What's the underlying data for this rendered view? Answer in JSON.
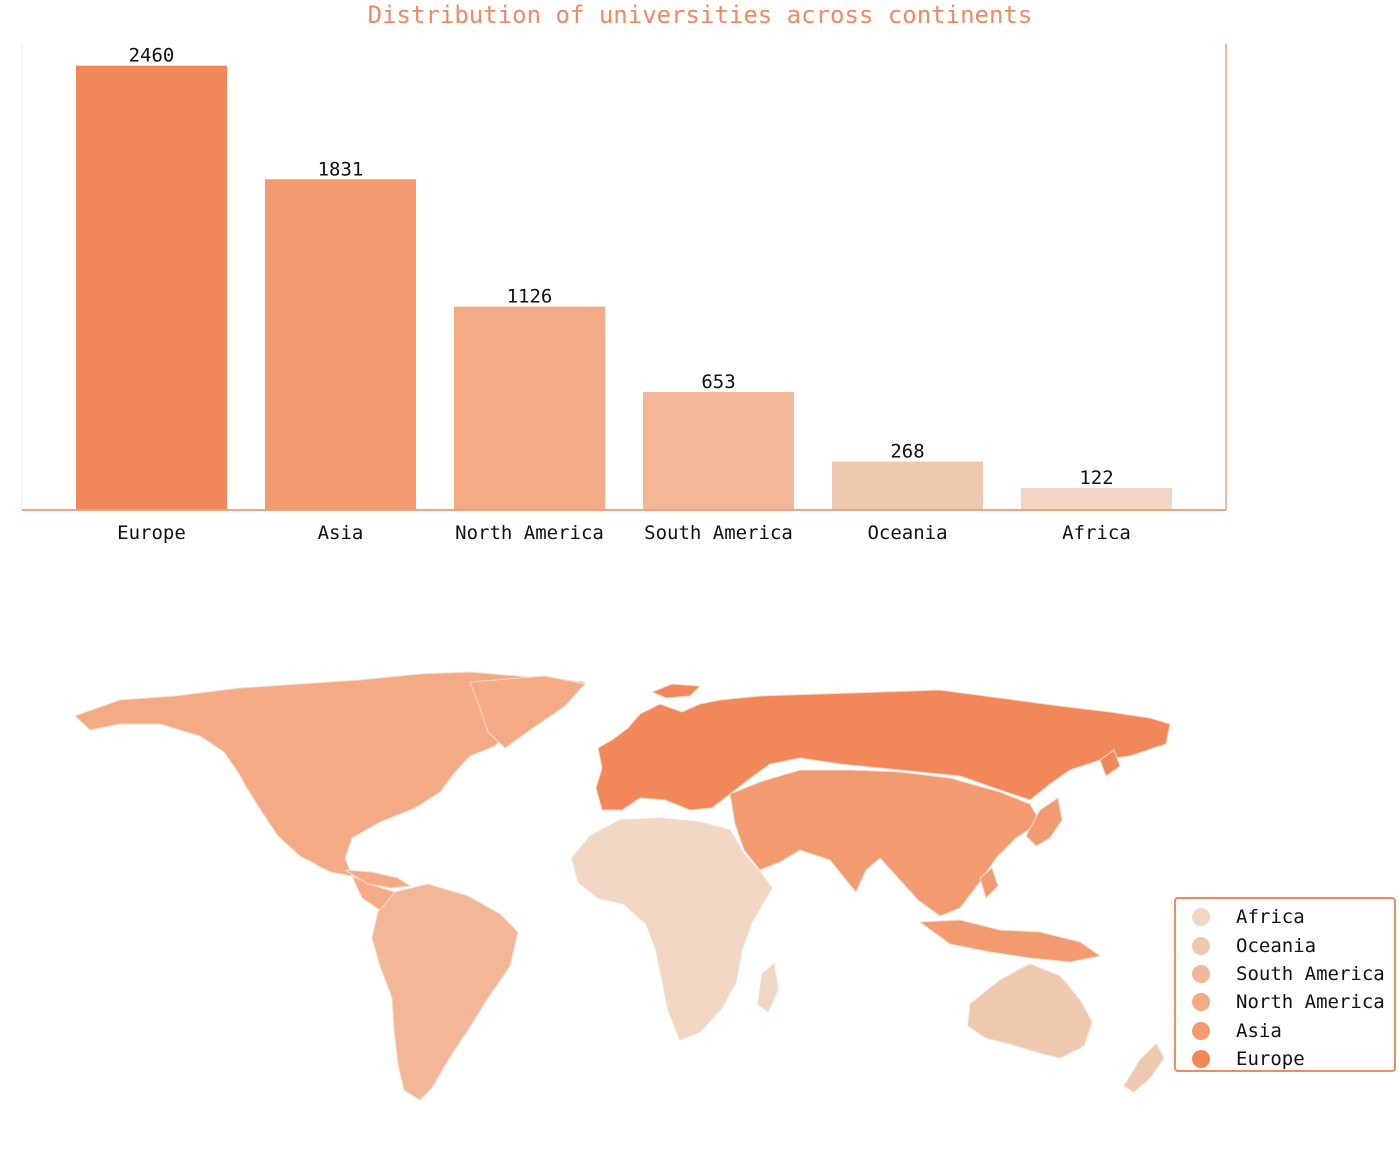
{
  "colors": {
    "title": "#ef8a62",
    "axis": "#e8a58a",
    "border": "#f4c7b4",
    "map_ocean": "#ffffff",
    "continent_colors": {
      "Europe": "#f2885a",
      "Asia": "#f29a70",
      "North America": "#f4aa85",
      "South America": "#f3b797",
      "Oceania": "#efc8b0",
      "Africa": "#f2d6c4"
    }
  },
  "chart_data": [
    {
      "type": "bar",
      "title": "Distribution of universities across continents",
      "xlabel": "",
      "ylabel": "",
      "categories": [
        "Europe",
        "Asia",
        "North America",
        "South America",
        "Oceania",
        "Africa"
      ],
      "values": [
        2460,
        1831,
        1126,
        653,
        268,
        122
      ],
      "value_labels": [
        "2460",
        "1831",
        "1126",
        "653",
        "268",
        "122"
      ],
      "ylim": [
        0,
        2580
      ],
      "grid": false,
      "legend": "none"
    },
    {
      "type": "choropleth-map",
      "regions": [
        "Europe",
        "Asia",
        "North America",
        "South America",
        "Oceania",
        "Africa"
      ],
      "values": [
        2460,
        1831,
        1126,
        653,
        268,
        122
      ],
      "legend_placement": "bottom-right",
      "legend": [
        {
          "name": "Africa",
          "icon": "circle"
        },
        {
          "name": "Oceania",
          "icon": "circle"
        },
        {
          "name": "South America",
          "icon": "circle"
        },
        {
          "name": "North America",
          "icon": "circle"
        },
        {
          "name": "Asia",
          "icon": "circle"
        },
        {
          "name": "Europe",
          "icon": "circle"
        }
      ]
    }
  ]
}
